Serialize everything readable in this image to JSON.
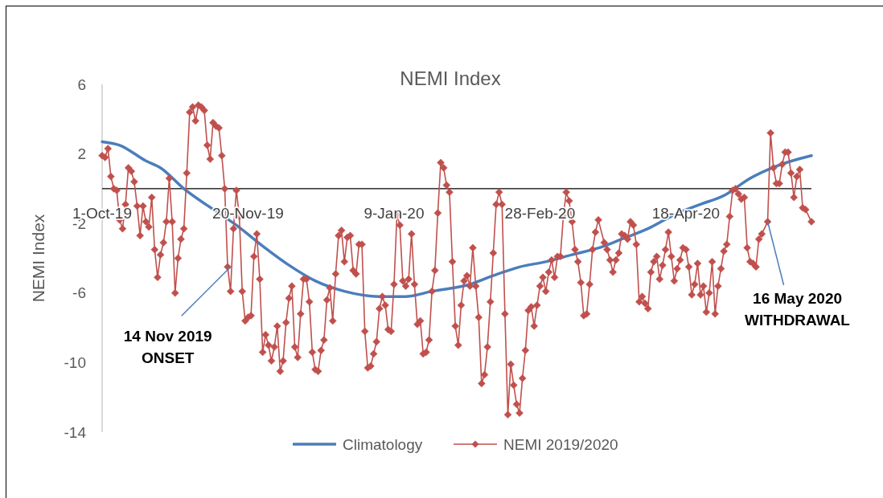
{
  "chart_data": {
    "type": "line",
    "title": "NEMI Index",
    "ylabel": "NEMI Index",
    "xlim": [
      "2019-10-01",
      "2020-05-31"
    ],
    "xticks": [
      {
        "value": "2019-10-01",
        "label": "1-Oct-19"
      },
      {
        "value": "2019-11-20",
        "label": "20-Nov-19"
      },
      {
        "value": "2020-01-09",
        "label": "9-Jan-20"
      },
      {
        "value": "2020-02-28",
        "label": "28-Feb-20"
      },
      {
        "value": "2020-04-18",
        "label": "18-Apr-20"
      }
    ],
    "ylim": [
      -14,
      6
    ],
    "yticks": [
      -14,
      -10,
      -6,
      -2,
      2,
      6
    ],
    "grid": false,
    "legend": "bottom",
    "series": [
      {
        "name": "Climatology",
        "color": "#4a7ebb",
        "marker": "none",
        "x": [
          "2019-10-01",
          "2019-10-07",
          "2019-10-16",
          "2019-10-21",
          "2019-10-29",
          "2019-11-09",
          "2019-11-16",
          "2019-11-25",
          "2019-12-04",
          "2019-12-13",
          "2019-12-23",
          "2020-01-04",
          "2020-01-13",
          "2020-01-22",
          "2020-02-04",
          "2020-02-12",
          "2020-02-21",
          "2020-03-01",
          "2020-03-10",
          "2020-03-21",
          "2020-03-27",
          "2020-04-05",
          "2020-04-14",
          "2020-04-23",
          "2020-05-01",
          "2020-05-10",
          "2020-05-19",
          "2020-05-31"
        ],
        "values": [
          2.7,
          2.5,
          1.6,
          1.2,
          0.0,
          -1.3,
          -2.1,
          -3.3,
          -4.4,
          -5.3,
          -5.9,
          -6.2,
          -6.2,
          -5.9,
          -5.5,
          -5.0,
          -4.5,
          -4.2,
          -3.8,
          -3.3,
          -2.9,
          -2.3,
          -1.5,
          -0.9,
          -0.4,
          0.6,
          1.3,
          1.9
        ]
      },
      {
        "name": "NEMI 2019/2020",
        "color": "#c0504d",
        "marker": "diamond",
        "x": [
          "2019-10-01",
          "2019-10-02",
          "2019-10-03",
          "2019-10-04",
          "2019-10-05",
          "2019-10-06",
          "2019-10-07",
          "2019-10-08",
          "2019-10-09",
          "2019-10-10",
          "2019-10-11",
          "2019-10-12",
          "2019-10-13",
          "2019-10-14",
          "2019-10-15",
          "2019-10-16",
          "2019-10-17",
          "2019-10-18",
          "2019-10-19",
          "2019-10-20",
          "2019-10-21",
          "2019-10-22",
          "2019-10-23",
          "2019-10-24",
          "2019-10-25",
          "2019-10-26",
          "2019-10-27",
          "2019-10-28",
          "2019-10-29",
          "2019-10-30",
          "2019-10-31",
          "2019-11-01",
          "2019-11-02",
          "2019-11-03",
          "2019-11-04",
          "2019-11-05",
          "2019-11-06",
          "2019-11-07",
          "2019-11-08",
          "2019-11-09",
          "2019-11-10",
          "2019-11-11",
          "2019-11-12",
          "2019-11-13",
          "2019-11-14",
          "2019-11-15",
          "2019-11-16",
          "2019-11-17",
          "2019-11-18",
          "2019-11-19",
          "2019-11-20",
          "2019-11-21",
          "2019-11-22",
          "2019-11-23",
          "2019-11-24",
          "2019-11-25",
          "2019-11-26",
          "2019-11-27",
          "2019-11-28",
          "2019-11-29",
          "2019-11-30",
          "2019-12-01",
          "2019-12-02",
          "2019-12-03",
          "2019-12-04",
          "2019-12-05",
          "2019-12-06",
          "2019-12-07",
          "2019-12-08",
          "2019-12-09",
          "2019-12-10",
          "2019-12-11",
          "2019-12-12",
          "2019-12-13",
          "2019-12-14",
          "2019-12-15",
          "2019-12-16",
          "2019-12-17",
          "2019-12-18",
          "2019-12-19",
          "2019-12-20",
          "2019-12-21",
          "2019-12-22",
          "2019-12-23",
          "2019-12-24",
          "2019-12-25",
          "2019-12-26",
          "2019-12-27",
          "2019-12-28",
          "2019-12-29",
          "2019-12-30",
          "2019-12-31",
          "2020-01-01",
          "2020-01-02",
          "2020-01-03",
          "2020-01-04",
          "2020-01-05",
          "2020-01-06",
          "2020-01-07",
          "2020-01-08",
          "2020-01-09",
          "2020-01-10",
          "2020-01-11",
          "2020-01-12",
          "2020-01-13",
          "2020-01-14",
          "2020-01-15",
          "2020-01-16",
          "2020-01-17",
          "2020-01-18",
          "2020-01-19",
          "2020-01-20",
          "2020-01-21",
          "2020-01-22",
          "2020-01-23",
          "2020-01-24",
          "2020-01-25",
          "2020-01-26",
          "2020-01-27",
          "2020-01-28",
          "2020-01-29",
          "2020-01-30",
          "2020-01-31",
          "2020-02-01",
          "2020-02-02",
          "2020-02-03",
          "2020-02-04",
          "2020-02-05",
          "2020-02-06",
          "2020-02-07",
          "2020-02-08",
          "2020-02-09",
          "2020-02-10",
          "2020-02-11",
          "2020-02-12",
          "2020-02-13",
          "2020-02-14",
          "2020-02-15",
          "2020-02-16",
          "2020-02-17",
          "2020-02-18",
          "2020-02-19",
          "2020-02-20",
          "2020-02-21",
          "2020-02-22",
          "2020-02-23",
          "2020-02-24",
          "2020-02-25",
          "2020-02-26",
          "2020-02-27",
          "2020-02-28",
          "2020-02-29",
          "2020-03-01",
          "2020-03-02",
          "2020-03-03",
          "2020-03-04",
          "2020-03-05",
          "2020-03-06",
          "2020-03-07",
          "2020-03-08",
          "2020-03-09",
          "2020-03-10",
          "2020-03-11",
          "2020-03-12",
          "2020-03-13",
          "2020-03-14",
          "2020-03-15",
          "2020-03-16",
          "2020-03-17",
          "2020-03-18",
          "2020-03-19",
          "2020-03-21",
          "2020-03-22",
          "2020-03-23",
          "2020-03-24",
          "2020-03-25",
          "2020-03-26",
          "2020-03-27",
          "2020-03-28",
          "2020-03-29",
          "2020-03-30",
          "2020-03-31",
          "2020-04-01",
          "2020-04-02",
          "2020-04-03",
          "2020-04-04",
          "2020-04-05",
          "2020-04-06",
          "2020-04-07",
          "2020-04-08",
          "2020-04-09",
          "2020-04-10",
          "2020-04-11",
          "2020-04-12",
          "2020-04-13",
          "2020-04-14",
          "2020-04-15",
          "2020-04-16",
          "2020-04-17",
          "2020-04-18",
          "2020-04-19",
          "2020-04-20",
          "2020-04-21",
          "2020-04-22",
          "2020-04-23",
          "2020-04-24",
          "2020-04-25",
          "2020-04-26",
          "2020-04-27",
          "2020-04-28",
          "2020-04-29",
          "2020-04-30",
          "2020-05-01",
          "2020-05-02",
          "2020-05-03",
          "2020-05-04",
          "2020-05-05",
          "2020-05-06",
          "2020-05-07",
          "2020-05-08",
          "2020-05-09",
          "2020-05-10",
          "2020-05-11",
          "2020-05-12",
          "2020-05-13",
          "2020-05-14",
          "2020-05-16",
          "2020-05-17",
          "2020-05-18",
          "2020-05-19",
          "2020-05-20",
          "2020-05-21",
          "2020-05-22",
          "2020-05-23",
          "2020-05-24",
          "2020-05-25",
          "2020-05-26",
          "2020-05-27",
          "2020-05-28",
          "2020-05-29",
          "2020-05-31"
        ],
        "values": [
          1.9,
          1.8,
          2.3,
          0.7,
          0.0,
          -0.1,
          -1.8,
          -2.3,
          -0.9,
          1.2,
          1.0,
          0.4,
          -1.0,
          -2.7,
          -1.0,
          -1.9,
          -2.2,
          -0.5,
          -3.5,
          -5.1,
          -3.8,
          -3.1,
          -1.9,
          0.6,
          -1.9,
          -6.0,
          -4.0,
          -2.9,
          -2.3,
          0.9,
          4.4,
          4.7,
          3.9,
          4.8,
          4.7,
          4.5,
          2.5,
          1.7,
          3.8,
          3.6,
          3.5,
          1.9,
          0.0,
          -4.5,
          -5.9,
          -2.3,
          -0.1,
          -1.6,
          -5.9,
          -7.6,
          -7.4,
          -7.3,
          -3.9,
          -2.6,
          -5.2,
          -9.4,
          -8.4,
          -9.0,
          -9.9,
          -9.1,
          -7.9,
          -10.5,
          -9.9,
          -7.7,
          -6.3,
          -5.6,
          -9.1,
          -9.7,
          -7.2,
          -5.2,
          -5.2,
          -6.5,
          -9.4,
          -10.4,
          -10.5,
          -9.3,
          -8.7,
          -6.4,
          -5.7,
          -7.6,
          -4.9,
          -2.7,
          -2.4,
          -4.2,
          -2.8,
          -2.7,
          -4.7,
          -4.9,
          -3.2,
          -3.2,
          -8.2,
          -10.3,
          -10.2,
          -9.5,
          -8.8,
          -6.9,
          -6.2,
          -6.7,
          -8.1,
          -8.2,
          -5.5,
          -1.5,
          -2.1,
          -5.3,
          -5.6,
          -5.2,
          -2.6,
          -5.5,
          -7.8,
          -7.6,
          -9.5,
          -9.4,
          -8.7,
          -5.9,
          -4.7,
          -1.4,
          1.5,
          1.2,
          0.2,
          -0.2,
          -4.2,
          -7.9,
          -9.0,
          -6.7,
          -5.3,
          -5.0,
          -5.6,
          -3.4,
          -5.6,
          -7.4,
          -11.2,
          -10.7,
          -9.1,
          -6.5,
          -3.7,
          -0.9,
          -0.2,
          -0.9,
          -7.2,
          -13.0,
          -10.1,
          -11.3,
          -12.4,
          -12.9,
          -10.9,
          -9.3,
          -7.0,
          -6.8,
          -7.9,
          -6.7,
          -5.6,
          -5.1,
          -5.9,
          -4.8,
          -4.1,
          -5.1,
          -3.9,
          -3.9,
          -1.6,
          -0.2,
          -0.7,
          -1.9,
          -3.5,
          -4.2,
          -5.4,
          -7.3,
          -7.2,
          -5.5,
          -3.5,
          -2.5,
          -1.8,
          -3.1,
          -3.5,
          -4.1,
          -4.8,
          -4.1,
          -3.7,
          -2.6,
          -2.7,
          -2.9,
          -1.9,
          -2.1,
          -3.2,
          -6.5,
          -6.2,
          -6.6,
          -6.9,
          -4.8,
          -4.2,
          -3.9,
          -5.2,
          -4.4,
          -3.5,
          -2.5,
          -3.9,
          -5.3,
          -4.6,
          -4.1,
          -3.4,
          -3.5,
          -4.5,
          -6.1,
          -5.5,
          -4.3,
          -6.1,
          -5.6,
          -7.1,
          -6.0,
          -4.2,
          -7.2,
          -5.6,
          -4.6,
          -3.6,
          -3.2,
          -1.6,
          -0.1,
          0.0,
          -0.3,
          -0.6,
          -0.5,
          -3.4,
          -4.2,
          -4.3,
          -4.5,
          -2.9,
          -2.6,
          -1.9,
          3.2,
          1.2,
          0.3,
          0.3,
          1.4,
          2.1,
          2.1,
          0.9,
          -0.5,
          0.7,
          1.1,
          -1.1,
          -1.2,
          -1.9
        ]
      }
    ],
    "annotations": [
      {
        "text": "14 Nov 2019\nONSET",
        "x": "2019-11-14",
        "y": -4.5
      },
      {
        "text": "16 May 2020\nWITHDRAWAL",
        "x": "2020-05-16",
        "y": -1.9
      }
    ]
  }
}
